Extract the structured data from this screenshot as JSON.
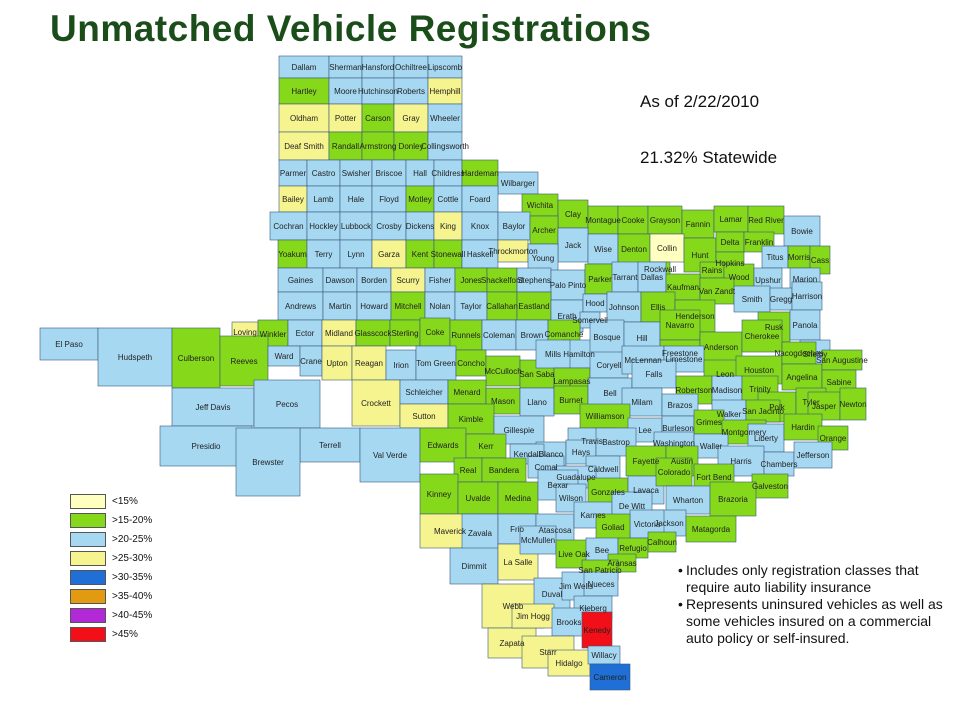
{
  "title": "Unmatched Vehicle Registrations",
  "as_of": "As of 2/22/2010",
  "statewide": "21.32% Statewide",
  "notes": [
    "Includes only registration classes that require auto liability insurance",
    "Represents uninsured vehicles as well as some vehicles insured on a commercial auto policy or self-insured."
  ],
  "colors": {
    "lt15": "#ffffc0",
    "15_20": "#86d81a",
    "20_25": "#a6d8f2",
    "25_30": "#f6f48e",
    "30_35": "#1f6fd6",
    "35_40": "#e29a10",
    "40_45": "#b22ad8",
    "gt45": "#f20f17",
    "border": "#3a5a7a",
    "title": "#1a4d1a"
  },
  "legend": [
    {
      "label": "<15%",
      "key": "lt15"
    },
    {
      "label": ">15-20%",
      "key": "15_20"
    },
    {
      "label": ">20-25%",
      "key": "20_25"
    },
    {
      "label": ">25-30%",
      "key": "25_30"
    },
    {
      "label": ">30-35%",
      "key": "30_35"
    },
    {
      "label": ">35-40%",
      "key": "35_40"
    },
    {
      "label": ">40-45%",
      "key": "40_45"
    },
    {
      "label": ">45%",
      "key": "gt45"
    }
  ],
  "counties": [
    {
      "name": "Dallam",
      "cat": "20_25"
    },
    {
      "name": "Sherman",
      "cat": "20_25"
    },
    {
      "name": "Hansford",
      "cat": "20_25"
    },
    {
      "name": "Ochiltree",
      "cat": "20_25"
    },
    {
      "name": "Lipscomb",
      "cat": "20_25"
    },
    {
      "name": "Hartley",
      "cat": "15_20"
    },
    {
      "name": "Moore",
      "cat": "20_25"
    },
    {
      "name": "Hutchinson",
      "cat": "20_25"
    },
    {
      "name": "Roberts",
      "cat": "20_25"
    },
    {
      "name": "Hemphill",
      "cat": "25_30"
    },
    {
      "name": "Oldham",
      "cat": "25_30"
    },
    {
      "name": "Potter",
      "cat": "25_30"
    },
    {
      "name": "Carson",
      "cat": "15_20"
    },
    {
      "name": "Gray",
      "cat": "25_30"
    },
    {
      "name": "Wheeler",
      "cat": "20_25"
    },
    {
      "name": "Deaf Smith",
      "cat": "25_30"
    },
    {
      "name": "Randall",
      "cat": "15_20"
    },
    {
      "name": "Armstrong",
      "cat": "15_20"
    },
    {
      "name": "Donley",
      "cat": "15_20"
    },
    {
      "name": "Collingsworth",
      "cat": "20_25"
    },
    {
      "name": "Parmer",
      "cat": "20_25"
    },
    {
      "name": "Castro",
      "cat": "20_25"
    },
    {
      "name": "Swisher",
      "cat": "20_25"
    },
    {
      "name": "Briscoe",
      "cat": "20_25"
    },
    {
      "name": "Hall",
      "cat": "20_25"
    },
    {
      "name": "Childress",
      "cat": "20_25"
    },
    {
      "name": "Hardeman",
      "cat": "15_20"
    },
    {
      "name": "Wilbarger",
      "cat": "20_25"
    },
    {
      "name": "Bailey",
      "cat": "25_30"
    },
    {
      "name": "Lamb",
      "cat": "20_25"
    },
    {
      "name": "Hale",
      "cat": "20_25"
    },
    {
      "name": "Floyd",
      "cat": "20_25"
    },
    {
      "name": "Motley",
      "cat": "15_20"
    },
    {
      "name": "Cottle",
      "cat": "20_25"
    },
    {
      "name": "Foard",
      "cat": "20_25"
    },
    {
      "name": "Wichita",
      "cat": "15_20"
    },
    {
      "name": "Clay",
      "cat": "15_20"
    },
    {
      "name": "Montague",
      "cat": "15_20"
    },
    {
      "name": "Cooke",
      "cat": "15_20"
    },
    {
      "name": "Grayson",
      "cat": "15_20"
    },
    {
      "name": "Fannin",
      "cat": "15_20"
    },
    {
      "name": "Lamar",
      "cat": "15_20"
    },
    {
      "name": "Red River",
      "cat": "15_20"
    },
    {
      "name": "Bowie",
      "cat": "20_25"
    },
    {
      "name": "Cochran",
      "cat": "20_25"
    },
    {
      "name": "Hockley",
      "cat": "20_25"
    },
    {
      "name": "Lubbock",
      "cat": "20_25"
    },
    {
      "name": "Crosby",
      "cat": "20_25"
    },
    {
      "name": "Dickens",
      "cat": "20_25"
    },
    {
      "name": "King",
      "cat": "25_30"
    },
    {
      "name": "Knox",
      "cat": "20_25"
    },
    {
      "name": "Baylor",
      "cat": "20_25"
    },
    {
      "name": "Archer",
      "cat": "15_20"
    },
    {
      "name": "Jack",
      "cat": "20_25"
    },
    {
      "name": "Wise",
      "cat": "20_25"
    },
    {
      "name": "Denton",
      "cat": "15_20"
    },
    {
      "name": "Collin",
      "cat": "lt15"
    },
    {
      "name": "Hunt",
      "cat": "15_20"
    },
    {
      "name": "Delta",
      "cat": "15_20"
    },
    {
      "name": "Franklin",
      "cat": "15_20"
    },
    {
      "name": "Titus",
      "cat": "20_25"
    },
    {
      "name": "Morris",
      "cat": "15_20"
    },
    {
      "name": "Cass",
      "cat": "15_20"
    },
    {
      "name": "Yoakum",
      "cat": "15_20"
    },
    {
      "name": "Terry",
      "cat": "20_25"
    },
    {
      "name": "Lynn",
      "cat": "20_25"
    },
    {
      "name": "Garza",
      "cat": "25_30"
    },
    {
      "name": "Kent",
      "cat": "15_20"
    },
    {
      "name": "Stonewall",
      "cat": "15_20"
    },
    {
      "name": "Haskell",
      "cat": "20_25"
    },
    {
      "name": "Throckmorton",
      "cat": "25_30"
    },
    {
      "name": "Young",
      "cat": "20_25"
    },
    {
      "name": "Rockwall",
      "cat": "15_20"
    },
    {
      "name": "Hopkins",
      "cat": "15_20"
    },
    {
      "name": "Rains",
      "cat": "15_20"
    },
    {
      "name": "Wood",
      "cat": "15_20"
    },
    {
      "name": "Upshur",
      "cat": "20_25"
    },
    {
      "name": "Marion",
      "cat": "20_25"
    },
    {
      "name": "Gaines",
      "cat": "20_25"
    },
    {
      "name": "Dawson",
      "cat": "20_25"
    },
    {
      "name": "Borden",
      "cat": "20_25"
    },
    {
      "name": "Scurry",
      "cat": "25_30"
    },
    {
      "name": "Fisher",
      "cat": "20_25"
    },
    {
      "name": "Jones",
      "cat": "15_20"
    },
    {
      "name": "Shackelford",
      "cat": "15_20"
    },
    {
      "name": "Stephens",
      "cat": "20_25"
    },
    {
      "name": "Palo Pinto",
      "cat": "20_25"
    },
    {
      "name": "Parker",
      "cat": "15_20"
    },
    {
      "name": "Tarrant",
      "cat": "20_25"
    },
    {
      "name": "Dallas",
      "cat": "20_25"
    },
    {
      "name": "Kaufman",
      "cat": "15_20"
    },
    {
      "name": "Van Zandt",
      "cat": "15_20"
    },
    {
      "name": "Smith",
      "cat": "20_25"
    },
    {
      "name": "Gregg",
      "cat": "20_25"
    },
    {
      "name": "Harrison",
      "cat": "20_25"
    },
    {
      "name": "Andrews",
      "cat": "20_25"
    },
    {
      "name": "Martin",
      "cat": "20_25"
    },
    {
      "name": "Howard",
      "cat": "20_25"
    },
    {
      "name": "Mitchell",
      "cat": "15_20"
    },
    {
      "name": "Nolan",
      "cat": "20_25"
    },
    {
      "name": "Taylor",
      "cat": "20_25"
    },
    {
      "name": "Callahan",
      "cat": "15_20"
    },
    {
      "name": "Eastland",
      "cat": "15_20"
    },
    {
      "name": "Erath",
      "cat": "20_25"
    },
    {
      "name": "Hood",
      "cat": "20_25"
    },
    {
      "name": "Johnson",
      "cat": "20_25"
    },
    {
      "name": "Ellis",
      "cat": "15_20"
    },
    {
      "name": "Henderson",
      "cat": "15_20"
    },
    {
      "name": "Rusk",
      "cat": "15_20"
    },
    {
      "name": "Panola",
      "cat": "20_25"
    },
    {
      "name": "Somervell",
      "cat": "20_25"
    },
    {
      "name": "El Paso",
      "cat": "20_25"
    },
    {
      "name": "Loving",
      "cat": "25_30"
    },
    {
      "name": "Winkler",
      "cat": "15_20"
    },
    {
      "name": "Ector",
      "cat": "20_25"
    },
    {
      "name": "Midland",
      "cat": "25_30"
    },
    {
      "name": "Glasscock",
      "cat": "15_20"
    },
    {
      "name": "Sterling",
      "cat": "15_20"
    },
    {
      "name": "Coke",
      "cat": "15_20"
    },
    {
      "name": "Runnels",
      "cat": "15_20"
    },
    {
      "name": "Coleman",
      "cat": "20_25"
    },
    {
      "name": "Brown",
      "cat": "20_25"
    },
    {
      "name": "Comanche",
      "cat": "15_20"
    },
    {
      "name": "Hamilton",
      "cat": "20_25"
    },
    {
      "name": "Bosque",
      "cat": "20_25"
    },
    {
      "name": "Hill",
      "cat": "20_25"
    },
    {
      "name": "Navarro",
      "cat": "15_20"
    },
    {
      "name": "Freestone",
      "cat": "15_20"
    },
    {
      "name": "Anderson",
      "cat": "15_20"
    },
    {
      "name": "Cherokee",
      "cat": "15_20"
    },
    {
      "name": "Shelby",
      "cat": "20_25"
    },
    {
      "name": "Hudspeth",
      "cat": "20_25"
    },
    {
      "name": "Culberson",
      "cat": "15_20"
    },
    {
      "name": "Reeves",
      "cat": "15_20"
    },
    {
      "name": "Ward",
      "cat": "20_25"
    },
    {
      "name": "Crane",
      "cat": "20_25"
    },
    {
      "name": "Upton",
      "cat": "25_30"
    },
    {
      "name": "Reagan",
      "cat": "25_30"
    },
    {
      "name": "Irion",
      "cat": "20_25"
    },
    {
      "name": "Tom Green",
      "cat": "20_25"
    },
    {
      "name": "Concho",
      "cat": "15_20"
    },
    {
      "name": "McCulloch",
      "cat": "15_20"
    },
    {
      "name": "San Saba",
      "cat": "15_20"
    },
    {
      "name": "Mills",
      "cat": "20_25"
    },
    {
      "name": "Lampasas",
      "cat": "15_20"
    },
    {
      "name": "Coryell",
      "cat": "20_25"
    },
    {
      "name": "McLennan",
      "cat": "20_25"
    },
    {
      "name": "Limestone",
      "cat": "20_25"
    },
    {
      "name": "Leon",
      "cat": "15_20"
    },
    {
      "name": "Houston",
      "cat": "15_20"
    },
    {
      "name": "Nacogdoches",
      "cat": "15_20"
    },
    {
      "name": "Angelina",
      "cat": "15_20"
    },
    {
      "name": "San Augustine",
      "cat": "15_20"
    },
    {
      "name": "Sabine",
      "cat": "15_20"
    },
    {
      "name": "Jeff Davis",
      "cat": "20_25"
    },
    {
      "name": "Pecos",
      "cat": "20_25"
    },
    {
      "name": "Crockett",
      "cat": "25_30"
    },
    {
      "name": "Schleicher",
      "cat": "20_25"
    },
    {
      "name": "Menard",
      "cat": "15_20"
    },
    {
      "name": "Mason",
      "cat": "15_20"
    },
    {
      "name": "Llano",
      "cat": "20_25"
    },
    {
      "name": "Burnet",
      "cat": "15_20"
    },
    {
      "name": "Bell",
      "cat": "20_25"
    },
    {
      "name": "Falls",
      "cat": "20_25"
    },
    {
      "name": "Robertson",
      "cat": "15_20"
    },
    {
      "name": "Madison",
      "cat": "20_25"
    },
    {
      "name": "Trinity",
      "cat": "15_20"
    },
    {
      "name": "Polk",
      "cat": "15_20"
    },
    {
      "name": "Tyler",
      "cat": "15_20"
    },
    {
      "name": "Jasper",
      "cat": "15_20"
    },
    {
      "name": "Newton",
      "cat": "15_20"
    },
    {
      "name": "Milam",
      "cat": "20_25"
    },
    {
      "name": "Brazos",
      "cat": "20_25"
    },
    {
      "name": "Walker",
      "cat": "20_25"
    },
    {
      "name": "San Jacinto",
      "cat": "15_20"
    },
    {
      "name": "Presidio",
      "cat": "20_25"
    },
    {
      "name": "Terrell",
      "cat": "20_25"
    },
    {
      "name": "Sutton",
      "cat": "25_30"
    },
    {
      "name": "Kimble",
      "cat": "15_20"
    },
    {
      "name": "Gillespie",
      "cat": "20_25"
    },
    {
      "name": "Williamson",
      "cat": "15_20"
    },
    {
      "name": "Travis",
      "cat": "20_25"
    },
    {
      "name": "Lee",
      "cat": "20_25"
    },
    {
      "name": "Burleson",
      "cat": "20_25"
    },
    {
      "name": "Grimes",
      "cat": "15_20"
    },
    {
      "name": "Montgomery",
      "cat": "15_20"
    },
    {
      "name": "Liberty",
      "cat": "20_25"
    },
    {
      "name": "Hardin",
      "cat": "15_20"
    },
    {
      "name": "Orange",
      "cat": "15_20"
    },
    {
      "name": "Brewster",
      "cat": "20_25"
    },
    {
      "name": "Val Verde",
      "cat": "20_25"
    },
    {
      "name": "Edwards",
      "cat": "15_20"
    },
    {
      "name": "Kerr",
      "cat": "15_20"
    },
    {
      "name": "Blanco",
      "cat": "20_25"
    },
    {
      "name": "Hays",
      "cat": "20_25"
    },
    {
      "name": "Bastrop",
      "cat": "20_25"
    },
    {
      "name": "Washington",
      "cat": "20_25"
    },
    {
      "name": "Waller",
      "cat": "20_25"
    },
    {
      "name": "Harris",
      "cat": "20_25"
    },
    {
      "name": "Chambers",
      "cat": "20_25"
    },
    {
      "name": "Jefferson",
      "cat": "20_25"
    },
    {
      "name": "Kendall",
      "cat": "20_25"
    },
    {
      "name": "Real",
      "cat": "15_20"
    },
    {
      "name": "Bandera",
      "cat": "15_20"
    },
    {
      "name": "Comal",
      "cat": "20_25"
    },
    {
      "name": "Caldwell",
      "cat": "20_25"
    },
    {
      "name": "Fayette",
      "cat": "15_20"
    },
    {
      "name": "Austin",
      "cat": "15_20"
    },
    {
      "name": "Fort Bend",
      "cat": "15_20"
    },
    {
      "name": "Galveston",
      "cat": "15_20"
    },
    {
      "name": "Guadalupe",
      "cat": "20_25"
    },
    {
      "name": "Kinney",
      "cat": "15_20"
    },
    {
      "name": "Uvalde",
      "cat": "15_20"
    },
    {
      "name": "Medina",
      "cat": "15_20"
    },
    {
      "name": "Bexar",
      "cat": "20_25"
    },
    {
      "name": "Gonzales",
      "cat": "15_20"
    },
    {
      "name": "Lavaca",
      "cat": "20_25"
    },
    {
      "name": "Colorado",
      "cat": "15_20"
    },
    {
      "name": "Wharton",
      "cat": "20_25"
    },
    {
      "name": "Brazoria",
      "cat": "15_20"
    },
    {
      "name": "Maverick",
      "cat": "25_30"
    },
    {
      "name": "Zavala",
      "cat": "20_25"
    },
    {
      "name": "Frio",
      "cat": "20_25"
    },
    {
      "name": "Atascosa",
      "cat": "20_25"
    },
    {
      "name": "Wilson",
      "cat": "20_25"
    },
    {
      "name": "Karnes",
      "cat": "20_25"
    },
    {
      "name": "De Witt",
      "cat": "20_25"
    },
    {
      "name": "Jackson",
      "cat": "20_25"
    },
    {
      "name": "Matagorda",
      "cat": "15_20"
    },
    {
      "name": "Victoria",
      "cat": "20_25"
    },
    {
      "name": "Goliad",
      "cat": "15_20"
    },
    {
      "name": "Dimmit",
      "cat": "20_25"
    },
    {
      "name": "La Salle",
      "cat": "25_30"
    },
    {
      "name": "McMullen",
      "cat": "20_25"
    },
    {
      "name": "Live Oak",
      "cat": "15_20"
    },
    {
      "name": "Bee",
      "cat": "20_25"
    },
    {
      "name": "Refugio",
      "cat": "15_20"
    },
    {
      "name": "Calhoun",
      "cat": "15_20"
    },
    {
      "name": "Aransas",
      "cat": "15_20"
    },
    {
      "name": "San Patricio",
      "cat": "15_20"
    },
    {
      "name": "Webb",
      "cat": "25_30"
    },
    {
      "name": "Duval",
      "cat": "20_25"
    },
    {
      "name": "Jim Wells",
      "cat": "20_25"
    },
    {
      "name": "Nueces",
      "cat": "20_25"
    },
    {
      "name": "Kleberg",
      "cat": "20_25"
    },
    {
      "name": "Zapata",
      "cat": "25_30"
    },
    {
      "name": "Jim Hogg",
      "cat": "25_30"
    },
    {
      "name": "Brooks",
      "cat": "20_25"
    },
    {
      "name": "Kenedy",
      "cat": "gt45"
    },
    {
      "name": "Starr",
      "cat": "25_30"
    },
    {
      "name": "Hidalgo",
      "cat": "25_30"
    },
    {
      "name": "Willacy",
      "cat": "20_25"
    },
    {
      "name": "Cameron",
      "cat": "30_35"
    }
  ]
}
